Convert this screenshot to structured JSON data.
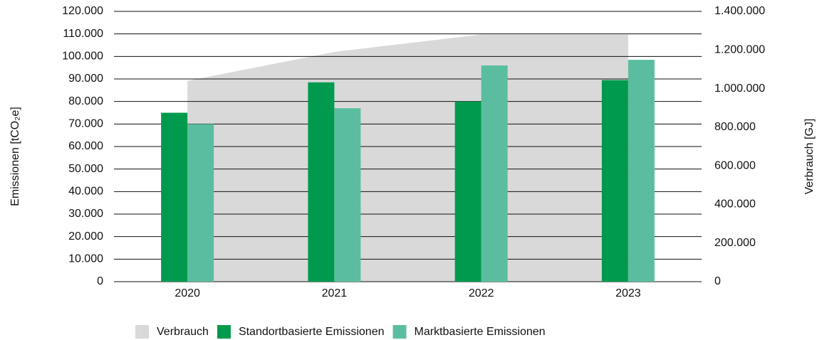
{
  "chart_data": {
    "type": "bar",
    "categories": [
      "2020",
      "2021",
      "2022",
      "2023"
    ],
    "series": [
      {
        "name": "Verbrauch",
        "color": "#d9d9d9",
        "type": "area",
        "axis": "y2",
        "values": [
          1040000,
          1190000,
          1280000,
          1280000
        ]
      },
      {
        "name": "Standortbasierte Emissionen",
        "color": "#009a4e",
        "values": [
          75000,
          88500,
          80000,
          89500
        ]
      },
      {
        "name": "Marktbasierte Emissionen",
        "color": "#5bbd9f",
        "values": [
          70000,
          77000,
          96000,
          98500
        ]
      }
    ],
    "ylabel": "Emissionen [tCO₂e]",
    "y2label": "Verbrauch [GJ]",
    "ylim": [
      0,
      120000
    ],
    "yticks": [
      0,
      {
        "value": 10000,
        "label": "10.000"
      },
      {
        "value": 20000,
        "label": "20.000"
      },
      {
        "value": 30000,
        "label": "30.000"
      },
      {
        "value": 40000,
        "label": "40.000"
      },
      {
        "value": 50000,
        "label": "50.000"
      },
      {
        "value": 60000,
        "label": "60.000"
      },
      {
        "value": 70000,
        "label": "70.000"
      },
      {
        "value": 80000,
        "label": "80.000"
      },
      {
        "value": 90000,
        "label": "90.000"
      },
      {
        "value": 100000,
        "label": "100.000"
      },
      {
        "value": 110000,
        "label": "110.000"
      },
      {
        "value": 120000,
        "label": "120.000"
      }
    ],
    "y2lim": [
      0,
      1400000
    ],
    "y2ticks": [
      0,
      {
        "value": 200000,
        "label": "200.000"
      },
      {
        "value": 400000,
        "label": "400.000"
      },
      {
        "value": 600000,
        "label": "600.000"
      },
      {
        "value": 800000,
        "label": "800.000"
      },
      {
        "value": 1000000,
        "label": "1.000.000"
      },
      {
        "value": 1200000,
        "label": "1.200.000"
      },
      {
        "value": 1400000,
        "label": "1.400.000"
      }
    ],
    "grid": true,
    "legend": "bottom"
  }
}
